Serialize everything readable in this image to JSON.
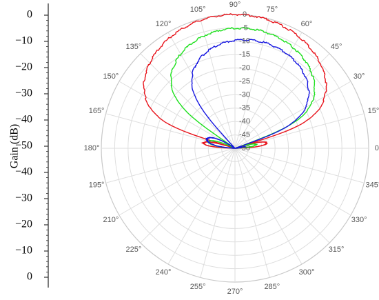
{
  "chart_data": {
    "type": "polar-line",
    "side_axis": {
      "label": "Gain (dB)",
      "tick_labels": [
        "0",
        "−10",
        "−20",
        "−30",
        "−40",
        "−50",
        "−40",
        "−30",
        "−20",
        "−10",
        "0"
      ]
    },
    "angle_ticks": [
      "0°",
      "15°",
      "30°",
      "45°",
      "60°",
      "75°",
      "90°",
      "105°",
      "120°",
      "135°",
      "150°",
      "165°",
      "180°",
      "195°",
      "210°",
      "225°",
      "240°",
      "255°",
      "270°",
      "285°",
      "300°",
      "315°",
      "330°",
      "345°"
    ],
    "radial_ticks": [
      "0",
      "-5",
      "-10",
      "-15",
      "-20",
      "-25",
      "-30",
      "-35",
      "-40",
      "-45",
      "-50"
    ],
    "r_range": [
      -50,
      0
    ],
    "grid": true,
    "series": [
      {
        "color": "#e8141c",
        "main_lobe": {
          "center_deg": 90,
          "half_width_deg": 73,
          "peak_db": 0
        },
        "side_lobes": [
          {
            "from_deg": 0,
            "to_deg": 19,
            "peak_db": -38
          },
          {
            "from_deg": 161,
            "to_deg": 180,
            "peak_db": -38
          }
        ]
      },
      {
        "color": "#1ee01e",
        "main_lobe": {
          "center_deg": 83,
          "half_width_deg": 63,
          "peak_db": -5
        },
        "side_lobes": [
          {
            "from_deg": 0,
            "to_deg": 20,
            "peak_db": -42
          },
          {
            "from_deg": 152,
            "to_deg": 180,
            "peak_db": -40
          }
        ]
      },
      {
        "color": "#1414e0",
        "main_lobe": {
          "center_deg": 76,
          "half_width_deg": 57,
          "peak_db": -9
        },
        "side_lobes": [
          {
            "from_deg": 0,
            "to_deg": 18,
            "peak_db": -46
          },
          {
            "from_deg": 144,
            "to_deg": 180,
            "peak_db": -39
          }
        ]
      }
    ]
  }
}
